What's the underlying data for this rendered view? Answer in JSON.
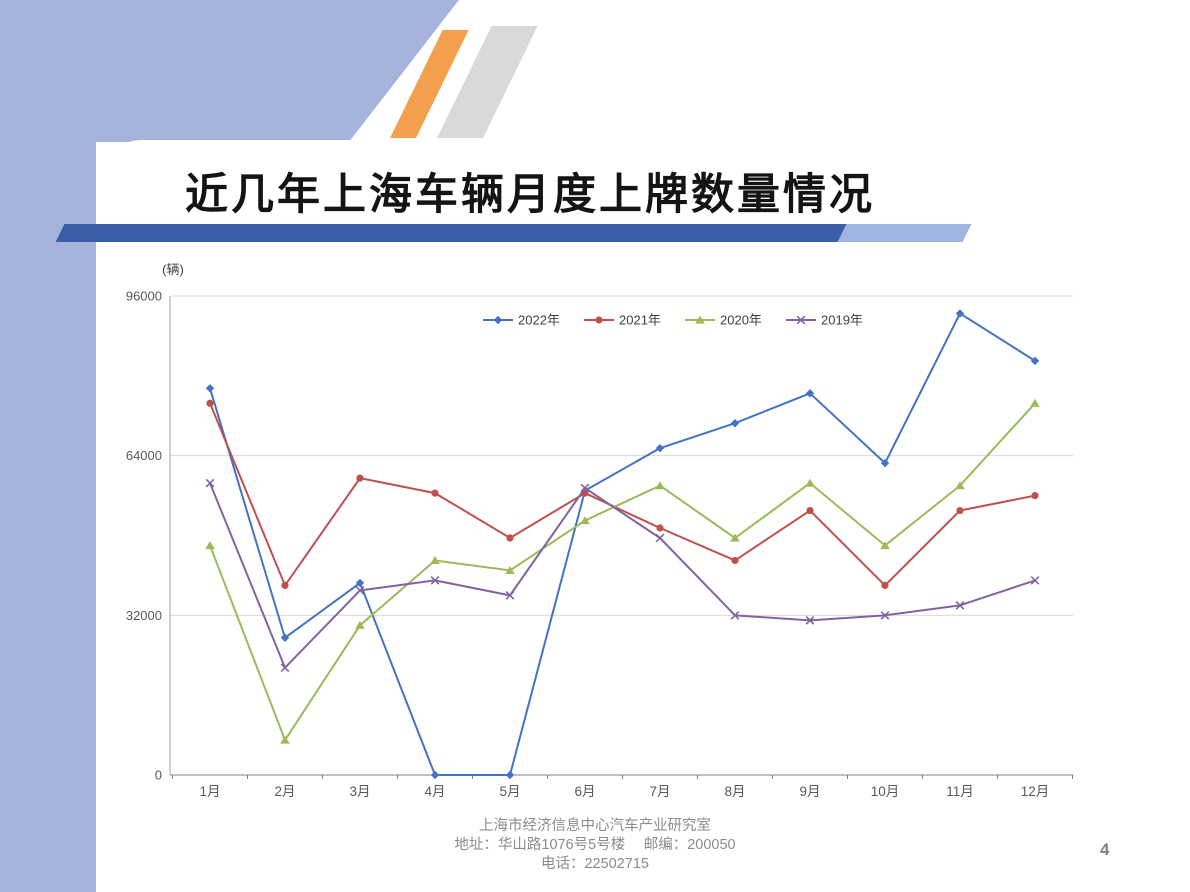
{
  "slide": {
    "title": "近几年上海车辆月度上牌数量情况",
    "page_number": "4",
    "footer_lines": [
      "上海市经济信息中心汽车产业研究室",
      "地址：华山路1076号5号楼　 邮编：200050",
      "电话：22502715"
    ]
  },
  "colors": {
    "background_accent": "#A6B3DC",
    "ribbon_dark": "#3B5EA9",
    "ribbon_light": "#9FB4DE",
    "stripe_orange": "#F3A04E",
    "stripe_gray": "#D9D9D9",
    "axis_text": "#595959",
    "gridline": "#D9D9D9"
  },
  "chart_data": {
    "type": "line",
    "unit_label": "(辆)",
    "categories": [
      "1月",
      "2月",
      "3月",
      "4月",
      "5月",
      "6月",
      "7月",
      "8月",
      "9月",
      "10月",
      "11月",
      "12月"
    ],
    "y_ticks": [
      0,
      32000,
      64000,
      96000
    ],
    "ylim": [
      0,
      96000
    ],
    "grid": true,
    "legend_position": "top-center",
    "series": [
      {
        "name": "2022年",
        "color": "#4472C4",
        "marker": "diamond",
        "values": [
          77500,
          27500,
          38500,
          0,
          0,
          57000,
          65500,
          70500,
          76500,
          62500,
          92500,
          83000
        ]
      },
      {
        "name": "2021年",
        "color": "#C0504D",
        "marker": "circle",
        "values": [
          74500,
          38000,
          59500,
          56500,
          47500,
          56500,
          49500,
          43000,
          53000,
          38000,
          53000,
          56000
        ]
      },
      {
        "name": "2020年",
        "color": "#9BBB59",
        "marker": "triangle",
        "values": [
          46000,
          7000,
          30000,
          43000,
          41000,
          51000,
          58000,
          47500,
          58500,
          46000,
          58000,
          74500
        ]
      },
      {
        "name": "2019年",
        "color": "#8064A2",
        "marker": "x",
        "values": [
          58500,
          21500,
          37000,
          39000,
          36000,
          57500,
          47500,
          32000,
          31000,
          32000,
          34000,
          39000
        ]
      }
    ]
  }
}
